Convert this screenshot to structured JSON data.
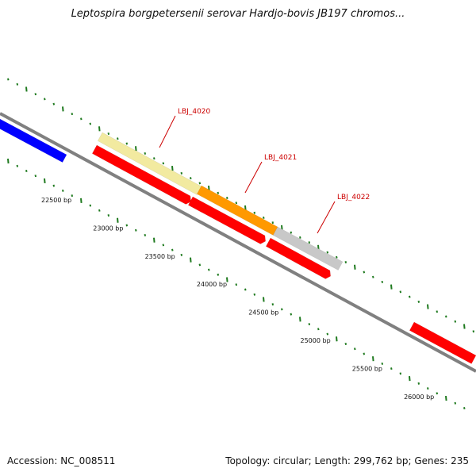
{
  "title": "Leptospira borgpetersenii serovar Hardjo-bovis JB197 chromos...",
  "footer": {
    "accession": "Accession: NC_008511",
    "summary": "Topology: circular; Length: 299,762 bp; Genes: 235"
  },
  "ruler": [
    {
      "bp": 22500,
      "label": "22500 bp"
    },
    {
      "bp": 23000,
      "label": "23000 bp"
    },
    {
      "bp": 23500,
      "label": "23500 bp"
    },
    {
      "bp": 24000,
      "label": "24000 bp"
    },
    {
      "bp": 24500,
      "label": "24500 bp"
    },
    {
      "bp": 25000,
      "label": "25000 bp"
    },
    {
      "bp": 25500,
      "label": "25500 bp"
    },
    {
      "bp": 26000,
      "label": "26000 bp"
    }
  ],
  "gene_labels": [
    {
      "text": "LBJ_4020",
      "color": "#cc0000"
    },
    {
      "text": "LBJ_4021",
      "color": "#cc0000"
    },
    {
      "text": "LBJ_4022",
      "color": "#cc0000"
    }
  ],
  "colors": {
    "backbone": "#808080",
    "tick": "#1f7a1f",
    "cds_forward": "#ff0000",
    "cds_other": "#0000ff",
    "feature_pale": "#f2eaa0",
    "feature_orange": "#ff9900",
    "feature_grey": "#c8c8c8"
  }
}
